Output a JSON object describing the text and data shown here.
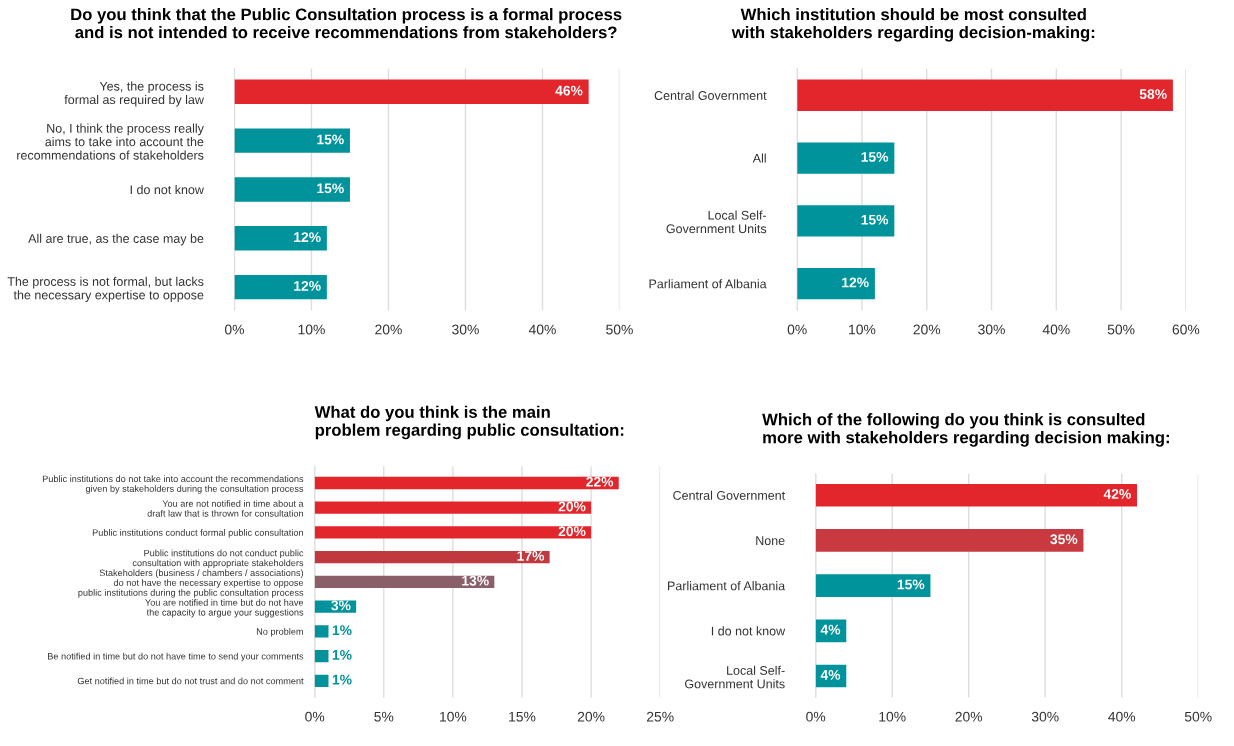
{
  "chart_data": [
    {
      "type": "bar",
      "orientation": "horizontal",
      "title": "Do you think that the Public Consultation process is a formal process\nand is not intended to receive recommendations from stakeholders?",
      "categories": [
        "Yes, the process is\nformal as required by law",
        "No, I think the process really\naims to take into account the\nrecommendations of stakeholders",
        "I do not know",
        "All are true, as the case may be",
        "The process is not formal, but lacks\nthe necessary expertise to oppose"
      ],
      "values": [
        46,
        15,
        15,
        12,
        12
      ],
      "value_labels": [
        "46%",
        "15%",
        "15%",
        "12%",
        "12%"
      ],
      "colors": [
        "#e3262b",
        "#00939b",
        "#00939b",
        "#00939b",
        "#00939b"
      ],
      "xlim": [
        0,
        50
      ],
      "xticks": [
        {
          "value": 0,
          "label": "0%"
        },
        {
          "value": 10,
          "label": "10%"
        },
        {
          "value": 20,
          "label": "20%"
        },
        {
          "value": 30,
          "label": "30%"
        },
        {
          "value": 40,
          "label": "40%"
        },
        {
          "value": 50,
          "label": "50%"
        }
      ],
      "grid": "x"
    },
    {
      "type": "bar",
      "orientation": "horizontal",
      "title": "Which institution should be most consulted\nwith stakeholders regarding decision-making:",
      "categories": [
        "Central Government",
        "All",
        "Local Self-\nGovernment Units",
        "Parliament of Albania"
      ],
      "values": [
        58,
        15,
        15,
        12
      ],
      "value_labels": [
        "58%",
        "15%",
        "15%",
        "12%"
      ],
      "colors": [
        "#e3262b",
        "#00939b",
        "#00939b",
        "#00939b"
      ],
      "xlim": [
        0,
        60
      ],
      "xticks": [
        {
          "value": 0,
          "label": "0%"
        },
        {
          "value": 10,
          "label": "10%"
        },
        {
          "value": 20,
          "label": "20%"
        },
        {
          "value": 30,
          "label": "30%"
        },
        {
          "value": 40,
          "label": "40%"
        },
        {
          "value": 50,
          "label": "50%"
        },
        {
          "value": 60,
          "label": "60%"
        }
      ],
      "grid": "x"
    },
    {
      "type": "bar",
      "orientation": "horizontal",
      "title": "What do you think is the main\nproblem regarding public consultation:",
      "categories": [
        "Public institutions do not take into account the recommendations\ngiven by stakeholders during the consultation process",
        "You are not notified in time about a\ndraft law that is thrown for consultation",
        "Public institutions conduct formal public consultation",
        "Public institutions do not conduct public\nconsultation with appropriate stakeholders",
        "Stakeholders (business / chambers / associations)\ndo not have the necessary expertise to oppose\npublic institutions during the public consultation process",
        "You are notified in time but do not have\nthe capacity to argue your suggestions",
        "No problem",
        "Be notified in time but do not have time to send your comments",
        "Get notified in time but do not trust and do not comment"
      ],
      "values": [
        22,
        20,
        20,
        17,
        13,
        3,
        1,
        1,
        1
      ],
      "value_labels": [
        "22%",
        "20%",
        "20%",
        "17%",
        "13%",
        "3%",
        "1%",
        "1%",
        "1%"
      ],
      "colors": [
        "#e3262b",
        "#e3262b",
        "#e3262b",
        "#c0393f",
        "#8a5f69",
        "#00939b",
        "#00939b",
        "#00939b",
        "#00939b"
      ],
      "xlim": [
        0,
        25
      ],
      "xticks": [
        {
          "value": 0,
          "label": "0%"
        },
        {
          "value": 5,
          "label": "5%"
        },
        {
          "value": 10,
          "label": "10%"
        },
        {
          "value": 15,
          "label": "15%"
        },
        {
          "value": 20,
          "label": "20%"
        },
        {
          "value": 25,
          "label": "25%"
        }
      ],
      "grid": "x"
    },
    {
      "type": "bar",
      "orientation": "horizontal",
      "title": "Which of the following do you think is consulted\nmore with stakeholders regarding decision making:",
      "categories": [
        "Central Government",
        "None",
        "Parliament of Albania",
        "I do not know",
        "Local Self-\nGovernment Units"
      ],
      "values": [
        42,
        35,
        15,
        4,
        4
      ],
      "value_labels": [
        "42%",
        "35%",
        "15%",
        "4%",
        "4%"
      ],
      "colors": [
        "#e3262b",
        "#c83a40",
        "#00939b",
        "#00939b",
        "#00939b"
      ],
      "xlim": [
        0,
        50
      ],
      "xticks": [
        {
          "value": 0,
          "label": "0%"
        },
        {
          "value": 10,
          "label": "10%"
        },
        {
          "value": 20,
          "label": "20%"
        },
        {
          "value": 30,
          "label": "30%"
        },
        {
          "value": 40,
          "label": "40%"
        },
        {
          "value": 50,
          "label": "50%"
        }
      ],
      "grid": "x"
    }
  ]
}
